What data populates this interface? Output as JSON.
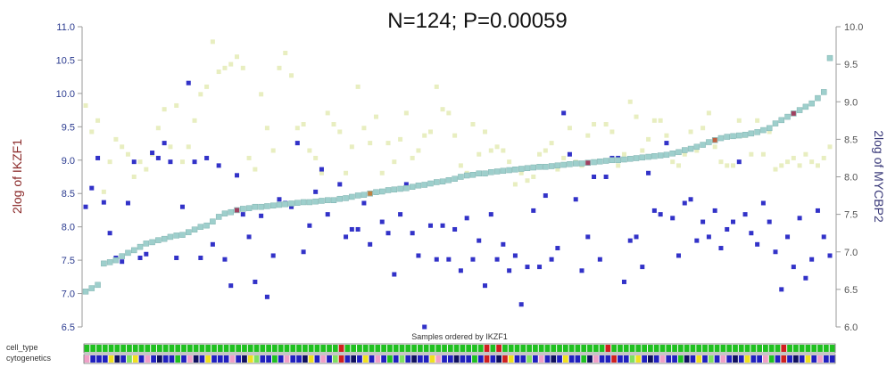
{
  "chart_data": {
    "type": "scatter",
    "title": "N=124; P=0.00059",
    "xlabel": "Samples ordered by IKZF1",
    "ylabel_left": "2log of IKZF1",
    "ylabel_right": "2log of MYCBP2",
    "ylim_left": [
      6.5,
      11.0
    ],
    "ylim_right": [
      6.0,
      10.0
    ],
    "yticks_left": [
      "6.5",
      "7.0",
      "7.5",
      "8.0",
      "8.5",
      "9.0",
      "9.5",
      "10.0",
      "10.5",
      "11.0"
    ],
    "yticks_right": [
      "6.0",
      "6.5",
      "7.0",
      "7.5",
      "8.0",
      "8.5",
      "9.0",
      "9.5",
      "10.0"
    ],
    "n_samples": 124,
    "series": [
      {
        "name": "IKZF1",
        "color": "#9ecfcc",
        "values": [
          7.03,
          7.08,
          7.13,
          7.45,
          7.47,
          7.5,
          7.56,
          7.61,
          7.65,
          7.7,
          7.75,
          7.77,
          7.8,
          7.82,
          7.85,
          7.87,
          7.88,
          7.92,
          7.96,
          8.0,
          8.02,
          8.08,
          8.15,
          8.2,
          8.22,
          8.25,
          8.27,
          8.28,
          8.3,
          8.3,
          8.31,
          8.32,
          8.33,
          8.34,
          8.35,
          8.36,
          8.37,
          8.37,
          8.38,
          8.39,
          8.4,
          8.4,
          8.42,
          8.43,
          8.45,
          8.47,
          8.48,
          8.5,
          8.52,
          8.53,
          8.55,
          8.56,
          8.57,
          8.58,
          8.6,
          8.62,
          8.63,
          8.65,
          8.67,
          8.68,
          8.7,
          8.72,
          8.75,
          8.77,
          8.78,
          8.8,
          8.8,
          8.82,
          8.83,
          8.84,
          8.85,
          8.86,
          8.87,
          8.88,
          8.89,
          8.9,
          8.9,
          8.91,
          8.92,
          8.93,
          8.94,
          8.95,
          8.95,
          8.96,
          8.97,
          8.98,
          8.99,
          9.0,
          9.0,
          9.01,
          9.02,
          9.03,
          9.04,
          9.05,
          9.06,
          9.07,
          9.08,
          9.1,
          9.12,
          9.15,
          9.17,
          9.2,
          9.23,
          9.27,
          9.3,
          9.33,
          9.35,
          9.36,
          9.37,
          9.38,
          9.4,
          9.42,
          9.45,
          9.48,
          9.55,
          9.6,
          9.65,
          9.7,
          9.75,
          9.8,
          9.85,
          9.93,
          10.02,
          10.53
        ]
      },
      {
        "name": "MYCBP2",
        "color": "#3232c8",
        "values": [
          7.6,
          7.85,
          8.25,
          7.66,
          7.25,
          6.92,
          6.87,
          7.65,
          8.2,
          6.92,
          6.97,
          8.32,
          8.25,
          8.45,
          8.2,
          6.92,
          7.6,
          9.25,
          8.2,
          6.92,
          8.25,
          7.1,
          8.15,
          6.9,
          6.55,
          8.02,
          7.5,
          7.2,
          6.6,
          7.48,
          6.4,
          6.95,
          7.7,
          7.65,
          7.6,
          8.45,
          7.0,
          7.35,
          7.8,
          8.1,
          7.5,
          7.68,
          7.9,
          7.2,
          7.3,
          7.3,
          7.65,
          7.1,
          7.8,
          7.4,
          7.25,
          6.7,
          7.5,
          7.9,
          7.25,
          6.95,
          6.0,
          7.35,
          6.9,
          7.35,
          6.9,
          7.3,
          6.75,
          7.45,
          6.9,
          7.15,
          6.55,
          7.5,
          6.9,
          7.1,
          6.75,
          6.95,
          6.3,
          6.8,
          7.55,
          6.8,
          7.75,
          6.9,
          7.05,
          8.85,
          8.3,
          7.7,
          6.75,
          7.2,
          8.0,
          6.9,
          8.0,
          8.25,
          8.25,
          6.6,
          7.15,
          7.2,
          6.8,
          8.05,
          7.55,
          7.5,
          8.45,
          7.45,
          6.95,
          7.65,
          7.7,
          7.15,
          7.4,
          7.2,
          7.55,
          7.05,
          7.3,
          7.4,
          8.2,
          7.5,
          7.25,
          7.1,
          7.65,
          7.4,
          7.0,
          6.5,
          7.2,
          6.8,
          7.45,
          6.65,
          6.9,
          7.55,
          7.2,
          6.95
        ]
      },
      {
        "name": "",
        "color": "#e8eec0",
        "values": [
          8.95,
          8.6,
          8.75,
          7.8,
          8.2,
          8.5,
          8.4,
          8.3,
          8.0,
          8.2,
          8.1,
          8.3,
          8.65,
          8.9,
          8.4,
          8.95,
          8.2,
          8.4,
          8.75,
          9.1,
          9.2,
          9.8,
          9.4,
          9.45,
          9.5,
          9.6,
          9.45,
          8.25,
          8.1,
          9.1,
          8.65,
          8.35,
          9.45,
          9.65,
          9.35,
          8.65,
          8.7,
          8.35,
          8.25,
          8.05,
          8.85,
          8.7,
          8.6,
          8.05,
          8.4,
          9.2,
          8.65,
          8.45,
          8.8,
          8.05,
          8.45,
          8.2,
          8.5,
          8.85,
          8.25,
          8.35,
          8.55,
          8.6,
          9.2,
          8.9,
          8.85,
          8.55,
          8.15,
          8.05,
          8.7,
          8.3,
          8.6,
          8.35,
          8.4,
          8.35,
          8.2,
          7.9,
          8.05,
          7.95,
          8.0,
          8.3,
          8.35,
          8.45,
          8.1,
          8.25,
          8.65,
          8.2,
          8.15,
          8.55,
          8.7,
          8.2,
          8.7,
          8.6,
          8.15,
          8.3,
          9.0,
          8.8,
          8.35,
          8.5,
          8.75,
          8.75,
          8.55,
          8.2,
          8.15,
          8.3,
          8.6,
          8.35,
          8.65,
          8.85,
          8.4,
          8.2,
          8.15,
          8.15,
          8.75,
          8.55,
          8.3,
          8.75,
          8.3,
          8.6,
          8.1,
          8.15,
          8.2,
          8.25,
          8.15,
          8.3,
          8.2,
          8.15,
          8.25,
          8.4
        ]
      }
    ],
    "tracks": [
      {
        "name": "cell_type",
        "values": [
          "g",
          "g",
          "g",
          "g",
          "g",
          "g",
          "g",
          "g",
          "g",
          "g",
          "g",
          "g",
          "g",
          "g",
          "g",
          "g",
          "g",
          "g",
          "g",
          "g",
          "g",
          "g",
          "g",
          "g",
          "g",
          "g",
          "g",
          "g",
          "g",
          "g",
          "g",
          "g",
          "g",
          "g",
          "g",
          "g",
          "g",
          "g",
          "g",
          "g",
          "g",
          "g",
          "r",
          "g",
          "g",
          "g",
          "g",
          "g",
          "g",
          "g",
          "g",
          "g",
          "g",
          "g",
          "g",
          "g",
          "g",
          "g",
          "g",
          "g",
          "g",
          "g",
          "g",
          "g",
          "g",
          "g",
          "r",
          "g",
          "r",
          "g",
          "g",
          "g",
          "g",
          "g",
          "g",
          "g",
          "g",
          "g",
          "g",
          "g",
          "g",
          "g",
          "g",
          "g",
          "g",
          "g",
          "r",
          "g",
          "g",
          "g",
          "g",
          "g",
          "g",
          "g",
          "g",
          "g",
          "g",
          "g",
          "g",
          "g",
          "g",
          "g",
          "g",
          "g",
          "g",
          "g",
          "g",
          "g",
          "g",
          "g",
          "g",
          "g",
          "g",
          "g",
          "g",
          "r",
          "g",
          "g",
          "g",
          "g",
          "g",
          "g",
          "g",
          "g"
        ]
      },
      {
        "name": "cytogenetics",
        "values": [
          "p",
          "b",
          "b",
          "b",
          "y",
          "n",
          "b",
          "l",
          "y",
          "b",
          "p",
          "b",
          "n",
          "b",
          "b",
          "g",
          "b",
          "p",
          "n",
          "b",
          "y",
          "b",
          "b",
          "b",
          "p",
          "b",
          "n",
          "y",
          "l",
          "b",
          "b",
          "g",
          "b",
          "p",
          "b",
          "b",
          "n",
          "y",
          "b",
          "p",
          "b",
          "l",
          "r",
          "b",
          "n",
          "b",
          "y",
          "b",
          "p",
          "b",
          "g",
          "b",
          "l",
          "b",
          "n",
          "b",
          "b",
          "y",
          "p",
          "b",
          "b",
          "n",
          "b",
          "b",
          "g",
          "b",
          "r",
          "b",
          "n",
          "r",
          "y",
          "b",
          "b",
          "l",
          "b",
          "p",
          "b",
          "n",
          "b",
          "y",
          "b",
          "b",
          "g",
          "n",
          "p",
          "b",
          "b",
          "r",
          "b",
          "b",
          "l",
          "y",
          "b",
          "n",
          "b",
          "p",
          "b",
          "b",
          "g",
          "n",
          "b",
          "y",
          "b",
          "l",
          "b",
          "p",
          "b",
          "n",
          "b",
          "y",
          "b",
          "b",
          "p",
          "g",
          "b",
          "r",
          "b",
          "n",
          "b",
          "y",
          "b",
          "p",
          "b",
          "b"
        ]
      }
    ],
    "track_colors": {
      "g": "#20c020",
      "r": "#d02020",
      "p": "#f0a0c8",
      "b": "#2020c0",
      "n": "#101060",
      "y": "#f0e020",
      "l": "#80e060"
    },
    "highlight_markers": [
      {
        "index": 25,
        "color": "#a04060"
      },
      {
        "index": 47,
        "color": "#c08040"
      },
      {
        "index": 83,
        "color": "#a04060"
      },
      {
        "index": 104,
        "color": "#c06040"
      },
      {
        "index": 117,
        "color": "#a04060"
      }
    ],
    "grid": false,
    "legend": "none"
  }
}
